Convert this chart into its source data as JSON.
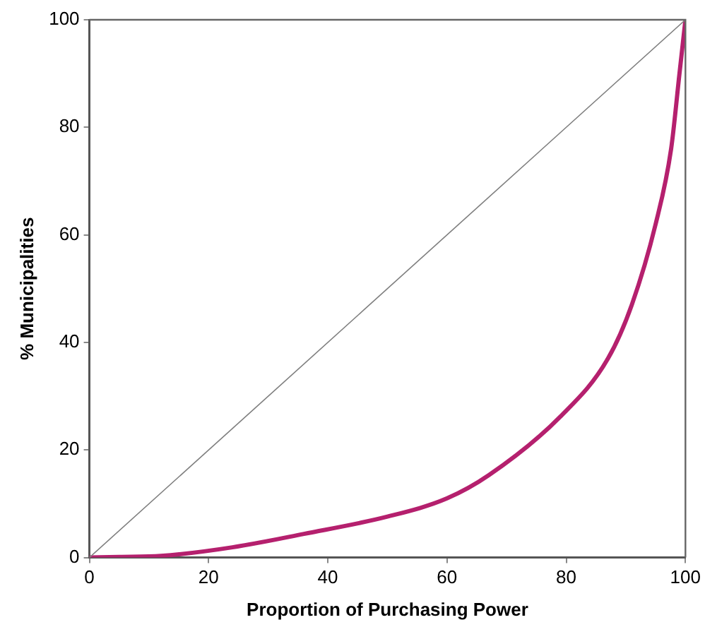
{
  "chart_data": {
    "type": "line",
    "xlabel": "Proportion of Purchasing Power",
    "ylabel": "% Municipalities",
    "xlim": [
      0,
      100
    ],
    "ylim": [
      0,
      100
    ],
    "xticks": [
      0,
      20,
      40,
      60,
      80,
      100
    ],
    "yticks": [
      0,
      20,
      40,
      60,
      80,
      100
    ],
    "grid": false,
    "legend": false,
    "marker": "none",
    "series": [
      {
        "color": "#808080",
        "x": [
          0,
          100
        ],
        "values": [
          0,
          100
        ]
      },
      {
        "color": "#b5206e",
        "x": [
          0,
          5,
          12,
          24,
          36,
          50,
          60,
          67,
          79,
          87,
          91,
          95,
          97.6,
          99,
          100
        ],
        "values": [
          0,
          0.1,
          0.3,
          1.9,
          4.4,
          7.6,
          11,
          15.3,
          26.2,
          37,
          47,
          62,
          76,
          90,
          100
        ]
      }
    ]
  }
}
